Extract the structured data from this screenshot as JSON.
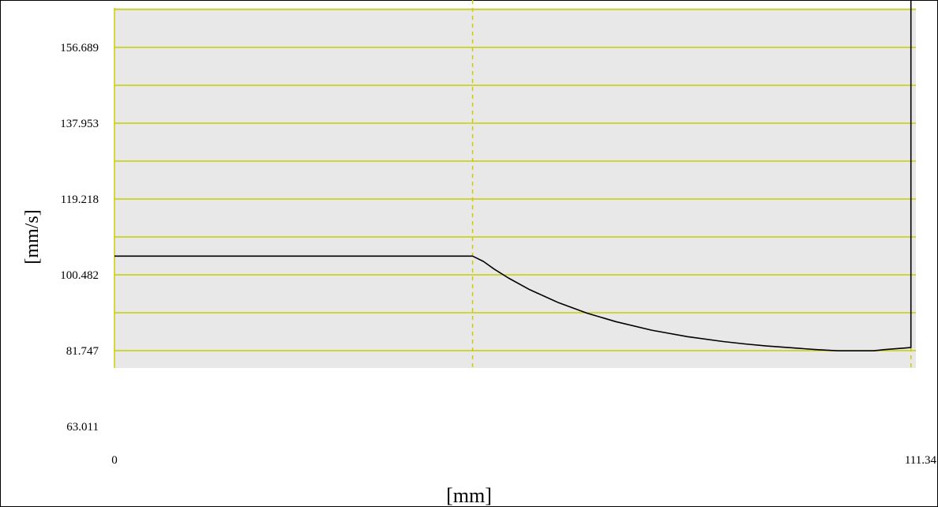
{
  "chart_data": {
    "type": "line",
    "title": "",
    "xlabel": "[mm]",
    "ylabel": "[mm/s]",
    "xlim": [
      0,
      111.34
    ],
    "ylim": [
      63.011,
      175.424
    ],
    "x_tick_labels": [
      "0",
      "111.34"
    ],
    "y_tick_labels": [
      "156.689",
      "137.953",
      "119.218",
      "100.482",
      "81.747",
      "63.011"
    ],
    "y_tick_values": [
      156.689,
      137.953,
      119.218,
      100.482,
      81.747,
      63.011
    ],
    "grid": true,
    "colors": {
      "plot_background": "#e8e8e8",
      "grid": "#cccc00",
      "line": "#000000",
      "frame": "#000000"
    },
    "series": [
      {
        "x": [
          0,
          50.0,
          51.5,
          53,
          55,
          58,
          62,
          66,
          70,
          75,
          80,
          85,
          88,
          91,
          95,
          98,
          101,
          106,
          107.5,
          111.2,
          111.2,
          111.34
        ],
        "y": [
          105.1,
          105.1,
          103.8,
          101.9,
          99.7,
          96.8,
          93.6,
          91.0,
          88.9,
          86.8,
          85.2,
          84.0,
          83.4,
          82.9,
          82.4,
          82.0,
          81.7,
          81.7,
          82.0,
          82.5,
          174.0,
          174.0
        ]
      }
    ],
    "vertical_markers_x": [
      50.0,
      111.2
    ]
  }
}
